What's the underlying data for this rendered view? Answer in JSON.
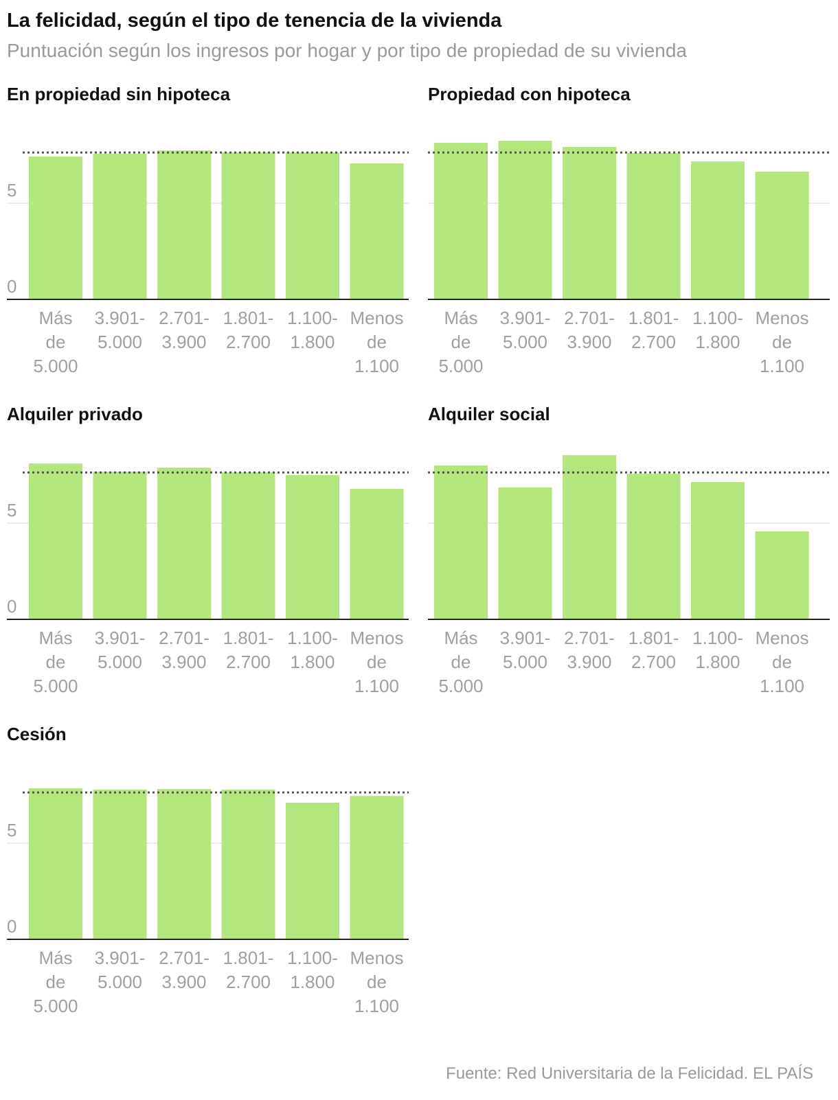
{
  "header": {
    "title": "La felicidad, según el tipo de tenencia de la vivienda",
    "subtitle": "Puntuación según los ingresos por hogar y por tipo de propiedad de su vivienda"
  },
  "source": "Fuente: Red Universitaria de la Felicidad. EL PAÍS",
  "colors": {
    "bar": "#b3e67c",
    "axis": "#222222",
    "tick": "#a0a0a0",
    "reference": "#555555"
  },
  "chart_data": [
    {
      "type": "bar",
      "title": "En propiedad sin hipoteca",
      "categories": [
        "Más de 5.000",
        "3.901-5.000",
        "2.701-3.900",
        "1.801-2.700",
        "1.100-1.800",
        "Menos de 1.100"
      ],
      "category_lines": [
        [
          "Más",
          "de",
          "5.000"
        ],
        [
          "3.901-",
          "5.000"
        ],
        [
          "2.701-",
          "3.900"
        ],
        [
          "1.801-",
          "2.700"
        ],
        [
          "1.100-",
          "1.800"
        ],
        [
          "Menos",
          "de",
          "1.100"
        ]
      ],
      "values": [
        7.43,
        7.57,
        7.75,
        7.64,
        7.64,
        7.07
      ],
      "reference": 7.64,
      "yticks": [
        "0",
        "5"
      ],
      "ylim": [
        0,
        10
      ]
    },
    {
      "type": "bar",
      "title": "Propiedad con hipoteca",
      "categories": [
        "Más de 5.000",
        "3.901-5.000",
        "2.701-3.900",
        "1.801-2.700",
        "1.100-1.800",
        "Menos de 1.100"
      ],
      "category_lines": [
        [
          "Más",
          "de",
          "5.000"
        ],
        [
          "3.901-",
          "5.000"
        ],
        [
          "2.701-",
          "3.900"
        ],
        [
          "1.801-",
          "2.700"
        ],
        [
          "1.100-",
          "1.800"
        ],
        [
          "Menos",
          "de",
          "1.100"
        ]
      ],
      "values": [
        8.14,
        8.25,
        7.93,
        7.61,
        7.18,
        6.64
      ],
      "reference": 7.64,
      "yticks": [],
      "ylim": [
        0,
        10
      ]
    },
    {
      "type": "bar",
      "title": "Alquiler privado",
      "categories": [
        "Más de 5.000",
        "3.901-5.000",
        "2.701-3.900",
        "1.801-2.700",
        "1.100-1.800",
        "Menos de 1.100"
      ],
      "category_lines": [
        [
          "Más",
          "de",
          "5.000"
        ],
        [
          "3.901-",
          "5.000"
        ],
        [
          "2.701-",
          "3.900"
        ],
        [
          "1.801-",
          "2.700"
        ],
        [
          "1.100-",
          "1.800"
        ],
        [
          "Menos",
          "de",
          "1.100"
        ]
      ],
      "values": [
        8.11,
        7.68,
        7.89,
        7.64,
        7.5,
        6.79
      ],
      "reference": 7.64,
      "yticks": [
        "0",
        "5"
      ],
      "ylim": [
        0,
        10
      ]
    },
    {
      "type": "bar",
      "title": "Alquiler social",
      "categories": [
        "Más de 5.000",
        "3.901-5.000",
        "2.701-3.900",
        "1.801-2.700",
        "1.100-1.800",
        "Menos de 1.100"
      ],
      "category_lines": [
        [
          "Más",
          "de",
          "5.000"
        ],
        [
          "3.901-",
          "5.000"
        ],
        [
          "2.701-",
          "3.900"
        ],
        [
          "1.801-",
          "2.700"
        ],
        [
          "1.100-",
          "1.800"
        ],
        [
          "Menos",
          "de",
          "1.100"
        ]
      ],
      "values": [
        8.0,
        6.86,
        8.54,
        7.57,
        7.14,
        4.57
      ],
      "reference": 7.64,
      "yticks": [],
      "ylim": [
        0,
        10
      ]
    },
    {
      "type": "bar",
      "title": "Cesión",
      "categories": [
        "Más de 5.000",
        "3.901-5.000",
        "2.701-3.900",
        "1.801-2.700",
        "1.100-1.800",
        "Menos de 1.100"
      ],
      "category_lines": [
        [
          "Más",
          "de",
          "5.000"
        ],
        [
          "3.901-",
          "5.000"
        ],
        [
          "2.701-",
          "3.900"
        ],
        [
          "1.801-",
          "2.700"
        ],
        [
          "1.100-",
          "1.800"
        ],
        [
          "Menos",
          "de",
          "1.100"
        ]
      ],
      "values": [
        7.86,
        7.79,
        7.82,
        7.79,
        7.11,
        7.46
      ],
      "reference": 7.64,
      "yticks": [
        "0",
        "5"
      ],
      "ylim": [
        0,
        10
      ]
    }
  ]
}
